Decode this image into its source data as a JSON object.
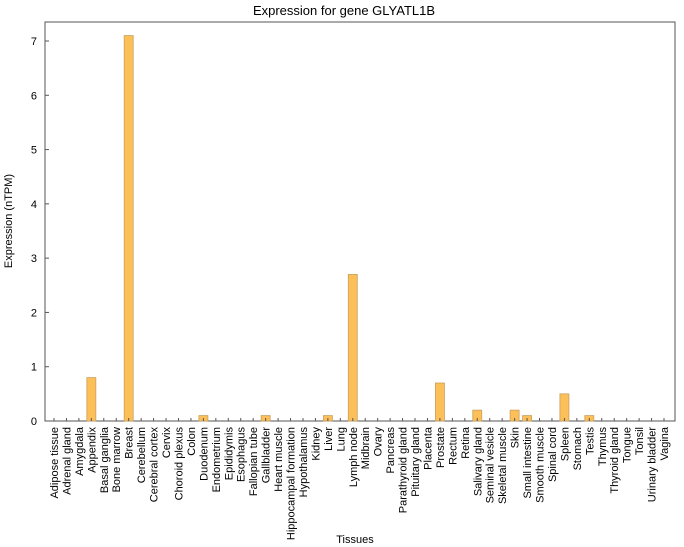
{
  "chart_data": {
    "type": "bar",
    "title": "Expression for gene GLYATL1B",
    "xlabel": "Tissues",
    "ylabel": "Expression (nTPM)",
    "ylim": [
      0,
      7.35
    ],
    "yticks": [
      0,
      1,
      2,
      3,
      4,
      5,
      6,
      7
    ],
    "grid": false,
    "bar_color": "#FDBF57",
    "bar_edge_color": "#C8A060",
    "categories": [
      "Adipose tissue",
      "Adrenal gland",
      "Amygdala",
      "Appendix",
      "Basal ganglia",
      "Bone marrow",
      "Breast",
      "Cerebellum",
      "Cerebral cortex",
      "Cervix",
      "Choroid plexus",
      "Colon",
      "Duodenum",
      "Endometrium",
      "Epididymis",
      "Esophagus",
      "Fallopian tube",
      "Gallbladder",
      "Heart muscle",
      "Hippocampal formation",
      "Hypothalamus",
      "Kidney",
      "Liver",
      "Lung",
      "Lymph node",
      "Midbrain",
      "Ovary",
      "Pancreas",
      "Parathyroid gland",
      "Pituitary gland",
      "Placenta",
      "Prostate",
      "Rectum",
      "Retina",
      "Salivary gland",
      "Seminal vesicle",
      "Skeletal muscle",
      "Skin",
      "Small intestine",
      "Smooth muscle",
      "Spinal cord",
      "Spleen",
      "Stomach",
      "Testis",
      "Thymus",
      "Thyroid gland",
      "Tongue",
      "Tonsil",
      "Urinary bladder",
      "Vagina"
    ],
    "values": [
      0,
      0,
      0,
      0.8,
      0,
      0,
      7.1,
      0,
      0,
      0,
      0,
      0,
      0.1,
      0,
      0,
      0,
      0,
      0.1,
      0,
      0,
      0,
      0,
      0.1,
      0,
      2.7,
      0,
      0,
      0,
      0,
      0,
      0,
      0.7,
      0,
      0,
      0.2,
      0,
      0,
      0.2,
      0.1,
      0,
      0,
      0.5,
      0,
      0.1,
      0,
      0,
      0,
      0,
      0,
      0
    ]
  }
}
